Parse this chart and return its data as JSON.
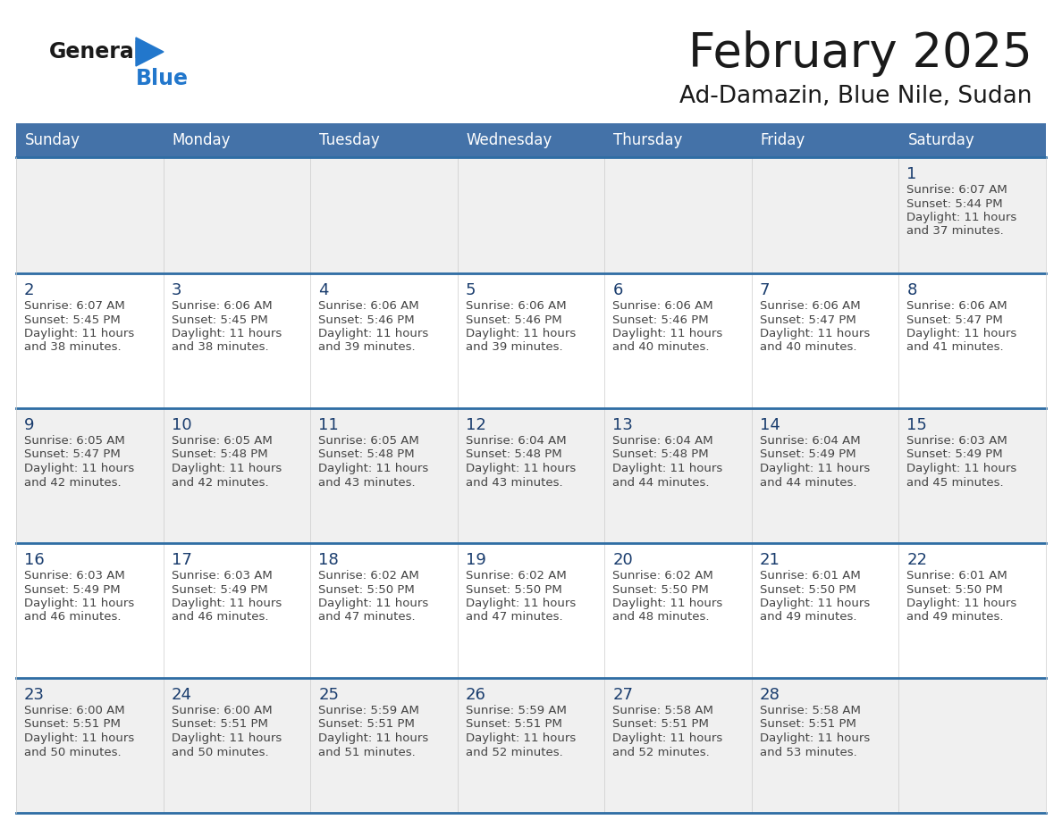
{
  "title": "February 2025",
  "subtitle": "Ad-Damazin, Blue Nile, Sudan",
  "header_color": "#4472a8",
  "header_text_color": "#ffffff",
  "cell_bg": "#ffffff",
  "cell_bg_alt": "#f0f0f0",
  "border_color_dark": "#2e6da4",
  "border_color_light": "#cccccc",
  "day_headers": [
    "Sunday",
    "Monday",
    "Tuesday",
    "Wednesday",
    "Thursday",
    "Friday",
    "Saturday"
  ],
  "text_color": "#444444",
  "day_number_color": "#1a3d6e",
  "logo_general_color": "#1a1a1a",
  "logo_blue_color": "#2277cc",
  "title_color": "#1a1a1a",
  "calendar_data": [
    [
      null,
      null,
      null,
      null,
      null,
      null,
      {
        "day": 1,
        "sunrise": "6:07 AM",
        "sunset": "5:44 PM",
        "daylight_hours": 11,
        "daylight_minutes": 37
      }
    ],
    [
      {
        "day": 2,
        "sunrise": "6:07 AM",
        "sunset": "5:45 PM",
        "daylight_hours": 11,
        "daylight_minutes": 38
      },
      {
        "day": 3,
        "sunrise": "6:06 AM",
        "sunset": "5:45 PM",
        "daylight_hours": 11,
        "daylight_minutes": 38
      },
      {
        "day": 4,
        "sunrise": "6:06 AM",
        "sunset": "5:46 PM",
        "daylight_hours": 11,
        "daylight_minutes": 39
      },
      {
        "day": 5,
        "sunrise": "6:06 AM",
        "sunset": "5:46 PM",
        "daylight_hours": 11,
        "daylight_minutes": 39
      },
      {
        "day": 6,
        "sunrise": "6:06 AM",
        "sunset": "5:46 PM",
        "daylight_hours": 11,
        "daylight_minutes": 40
      },
      {
        "day": 7,
        "sunrise": "6:06 AM",
        "sunset": "5:47 PM",
        "daylight_hours": 11,
        "daylight_minutes": 40
      },
      {
        "day": 8,
        "sunrise": "6:06 AM",
        "sunset": "5:47 PM",
        "daylight_hours": 11,
        "daylight_minutes": 41
      }
    ],
    [
      {
        "day": 9,
        "sunrise": "6:05 AM",
        "sunset": "5:47 PM",
        "daylight_hours": 11,
        "daylight_minutes": 42
      },
      {
        "day": 10,
        "sunrise": "6:05 AM",
        "sunset": "5:48 PM",
        "daylight_hours": 11,
        "daylight_minutes": 42
      },
      {
        "day": 11,
        "sunrise": "6:05 AM",
        "sunset": "5:48 PM",
        "daylight_hours": 11,
        "daylight_minutes": 43
      },
      {
        "day": 12,
        "sunrise": "6:04 AM",
        "sunset": "5:48 PM",
        "daylight_hours": 11,
        "daylight_minutes": 43
      },
      {
        "day": 13,
        "sunrise": "6:04 AM",
        "sunset": "5:48 PM",
        "daylight_hours": 11,
        "daylight_minutes": 44
      },
      {
        "day": 14,
        "sunrise": "6:04 AM",
        "sunset": "5:49 PM",
        "daylight_hours": 11,
        "daylight_minutes": 44
      },
      {
        "day": 15,
        "sunrise": "6:03 AM",
        "sunset": "5:49 PM",
        "daylight_hours": 11,
        "daylight_minutes": 45
      }
    ],
    [
      {
        "day": 16,
        "sunrise": "6:03 AM",
        "sunset": "5:49 PM",
        "daylight_hours": 11,
        "daylight_minutes": 46
      },
      {
        "day": 17,
        "sunrise": "6:03 AM",
        "sunset": "5:49 PM",
        "daylight_hours": 11,
        "daylight_minutes": 46
      },
      {
        "day": 18,
        "sunrise": "6:02 AM",
        "sunset": "5:50 PM",
        "daylight_hours": 11,
        "daylight_minutes": 47
      },
      {
        "day": 19,
        "sunrise": "6:02 AM",
        "sunset": "5:50 PM",
        "daylight_hours": 11,
        "daylight_minutes": 47
      },
      {
        "day": 20,
        "sunrise": "6:02 AM",
        "sunset": "5:50 PM",
        "daylight_hours": 11,
        "daylight_minutes": 48
      },
      {
        "day": 21,
        "sunrise": "6:01 AM",
        "sunset": "5:50 PM",
        "daylight_hours": 11,
        "daylight_minutes": 49
      },
      {
        "day": 22,
        "sunrise": "6:01 AM",
        "sunset": "5:50 PM",
        "daylight_hours": 11,
        "daylight_minutes": 49
      }
    ],
    [
      {
        "day": 23,
        "sunrise": "6:00 AM",
        "sunset": "5:51 PM",
        "daylight_hours": 11,
        "daylight_minutes": 50
      },
      {
        "day": 24,
        "sunrise": "6:00 AM",
        "sunset": "5:51 PM",
        "daylight_hours": 11,
        "daylight_minutes": 50
      },
      {
        "day": 25,
        "sunrise": "5:59 AM",
        "sunset": "5:51 PM",
        "daylight_hours": 11,
        "daylight_minutes": 51
      },
      {
        "day": 26,
        "sunrise": "5:59 AM",
        "sunset": "5:51 PM",
        "daylight_hours": 11,
        "daylight_minutes": 52
      },
      {
        "day": 27,
        "sunrise": "5:58 AM",
        "sunset": "5:51 PM",
        "daylight_hours": 11,
        "daylight_minutes": 52
      },
      {
        "day": 28,
        "sunrise": "5:58 AM",
        "sunset": "5:51 PM",
        "daylight_hours": 11,
        "daylight_minutes": 53
      },
      null
    ]
  ]
}
